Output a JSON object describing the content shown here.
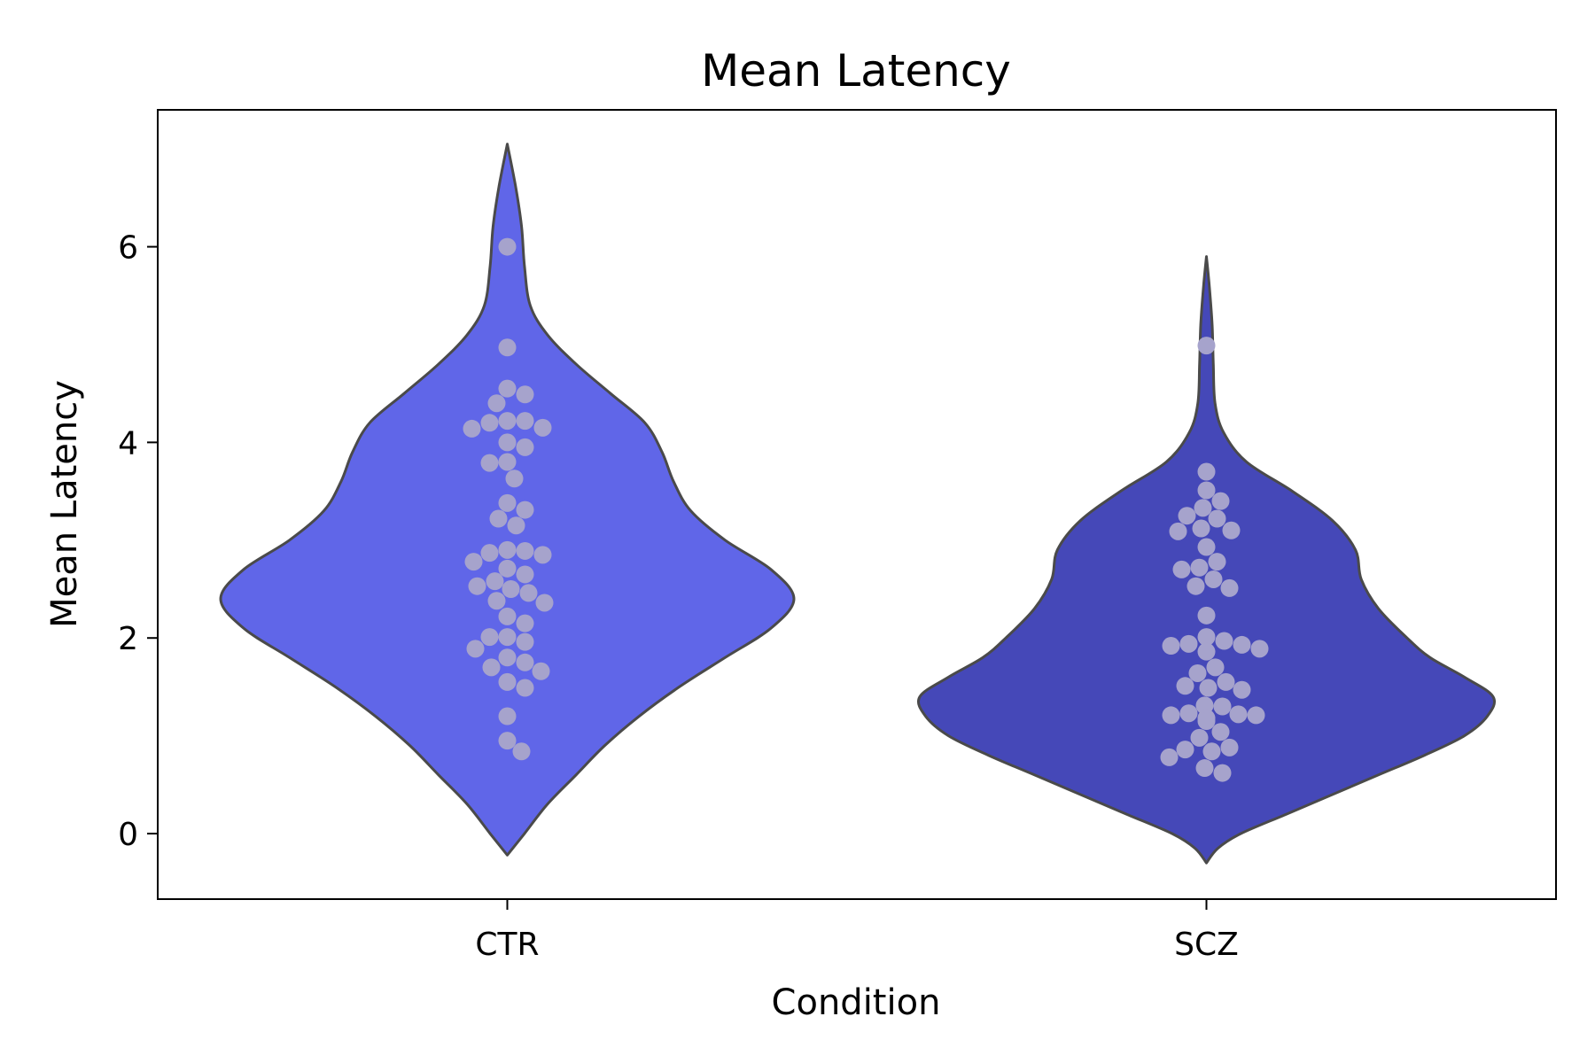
{
  "chart_data": {
    "type": "violin",
    "title": "Mean Latency",
    "xlabel": "Condition",
    "ylabel": "Mean Latency",
    "categories": [
      "CTR",
      "SCZ"
    ],
    "ylim": [
      -0.67,
      7.4
    ],
    "yticks": [
      0,
      2,
      4,
      6
    ],
    "ytick_labels": [
      "0",
      "2",
      "4",
      "6"
    ],
    "grid": false,
    "legend": "none",
    "colors": {
      "CTR": "#6066E8",
      "SCZ": "#4548B8",
      "points": "#A6A3CC",
      "outline": "#4A4A4A"
    },
    "violins": [
      {
        "category": "CTR",
        "range": [
          -0.22,
          7.05
        ],
        "profile": [
          [
            -0.22,
            0.0
          ],
          [
            0.0,
            0.03
          ],
          [
            0.3,
            0.07
          ],
          [
            0.6,
            0.12
          ],
          [
            0.9,
            0.17
          ],
          [
            1.2,
            0.23
          ],
          [
            1.5,
            0.3
          ],
          [
            1.8,
            0.38
          ],
          [
            2.1,
            0.46
          ],
          [
            2.4,
            0.5
          ],
          [
            2.7,
            0.46
          ],
          [
            3.0,
            0.38
          ],
          [
            3.3,
            0.32
          ],
          [
            3.6,
            0.29
          ],
          [
            3.9,
            0.27
          ],
          [
            4.2,
            0.24
          ],
          [
            4.5,
            0.18
          ],
          [
            4.8,
            0.12
          ],
          [
            5.1,
            0.07
          ],
          [
            5.4,
            0.04
          ],
          [
            5.8,
            0.03
          ],
          [
            6.2,
            0.025
          ],
          [
            6.6,
            0.015
          ],
          [
            7.05,
            0.0
          ]
        ],
        "points": [
          6.0,
          4.97,
          4.55,
          4.49,
          4.4,
          4.22,
          4.22,
          4.2,
          4.15,
          4.14,
          4.0,
          3.95,
          3.8,
          3.79,
          3.63,
          3.38,
          3.31,
          3.22,
          3.15,
          2.9,
          2.89,
          2.87,
          2.85,
          2.78,
          2.71,
          2.65,
          2.58,
          2.53,
          2.5,
          2.46,
          2.38,
          2.36,
          2.22,
          2.15,
          2.01,
          2.01,
          1.96,
          1.89,
          1.8,
          1.75,
          1.7,
          1.66,
          1.55,
          1.49,
          1.2,
          0.95,
          0.84
        ]
      },
      {
        "category": "SCZ",
        "range": [
          -0.3,
          5.9
        ],
        "profile": [
          [
            -0.3,
            0.0
          ],
          [
            -0.15,
            0.02
          ],
          [
            0.0,
            0.06
          ],
          [
            0.2,
            0.14
          ],
          [
            0.4,
            0.22
          ],
          [
            0.6,
            0.3
          ],
          [
            0.8,
            0.38
          ],
          [
            1.0,
            0.45
          ],
          [
            1.2,
            0.49
          ],
          [
            1.4,
            0.5
          ],
          [
            1.6,
            0.45
          ],
          [
            1.8,
            0.39
          ],
          [
            2.0,
            0.35
          ],
          [
            2.3,
            0.3
          ],
          [
            2.6,
            0.27
          ],
          [
            2.9,
            0.26
          ],
          [
            3.2,
            0.22
          ],
          [
            3.5,
            0.15
          ],
          [
            3.8,
            0.07
          ],
          [
            4.1,
            0.03
          ],
          [
            4.4,
            0.015
          ],
          [
            4.8,
            0.012
          ],
          [
            5.2,
            0.01
          ],
          [
            5.6,
            0.005
          ],
          [
            5.9,
            0.0
          ]
        ],
        "points": [
          4.99,
          3.7,
          3.51,
          3.4,
          3.33,
          3.25,
          3.22,
          3.12,
          3.1,
          3.09,
          2.93,
          2.78,
          2.72,
          2.7,
          2.6,
          2.53,
          2.51,
          2.23,
          2.01,
          1.97,
          1.94,
          1.93,
          1.92,
          1.89,
          1.86,
          1.7,
          1.64,
          1.55,
          1.51,
          1.49,
          1.47,
          1.31,
          1.3,
          1.23,
          1.22,
          1.21,
          1.21,
          1.18,
          1.15,
          1.04,
          0.98,
          0.88,
          0.86,
          0.84,
          0.78,
          0.67,
          0.62
        ]
      }
    ]
  }
}
